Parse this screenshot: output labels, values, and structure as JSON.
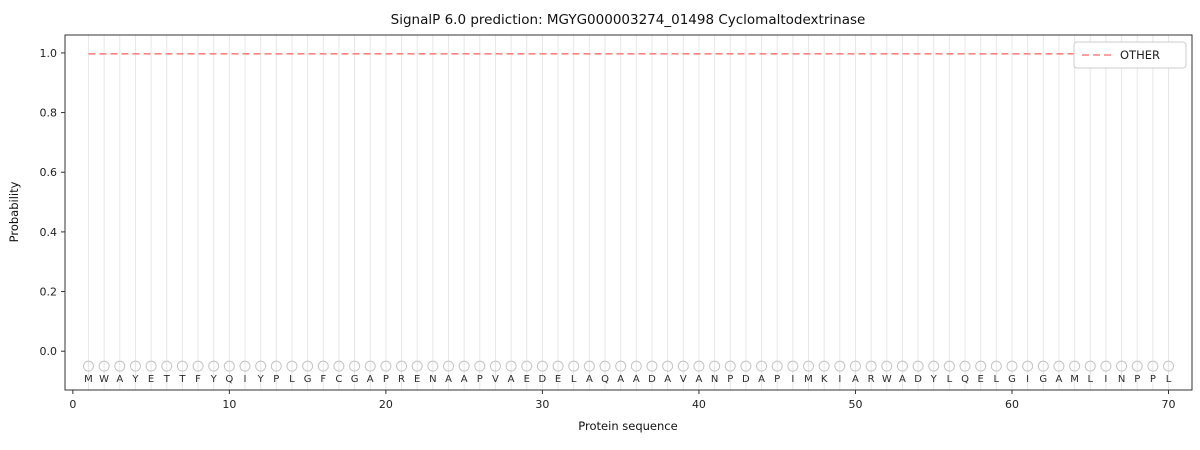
{
  "chart_data": {
    "type": "line",
    "title": "SignalP 6.0 prediction: MGYG000003274_01498 Cyclomaltodextrinase",
    "xlabel": "Protein sequence",
    "ylabel": "Probability",
    "xlim": [
      -0.5,
      71.5
    ],
    "ylim": [
      -0.13,
      1.06
    ],
    "x_ticks": [
      0,
      10,
      20,
      30,
      40,
      50,
      60,
      70
    ],
    "y_ticks": [
      0.0,
      0.2,
      0.4,
      0.6,
      0.8,
      1.0
    ],
    "grid": "vertical-line-per-residue",
    "legend_position": "upper right",
    "sequence": "MWAYETTFYQIYPLGFCGAPRENAAPVAEDELAQAADAVANPDAPIMKIARWADYLQELGIGAMLINPPL",
    "marker_y": -0.05,
    "series": [
      {
        "name": "OTHER",
        "style": "dashed",
        "color": "#ff8080",
        "constant_value": 0.997,
        "x_start": 1,
        "x_end": 70
      }
    ],
    "colors": {
      "grid": "#e7e7e7",
      "marker": "#c4c4c4",
      "letter": "#2b2b2b",
      "axis": "#333333",
      "tick_label": "#222222",
      "legend_border": "#cccccc"
    }
  }
}
